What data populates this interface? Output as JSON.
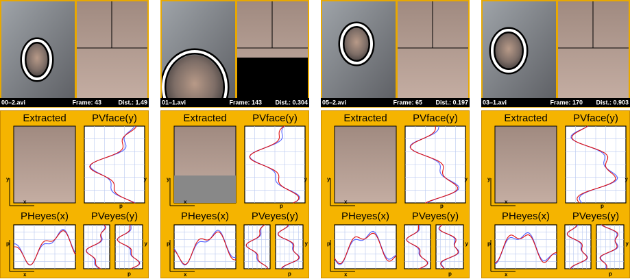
{
  "panels": [
    {
      "file": "00–2.avi",
      "frame": "Frame: 43",
      "dist": "Dist.: 1.49"
    },
    {
      "file": "01–1.avi",
      "frame": "Frame: 143",
      "dist": "Dist.: 0.304"
    },
    {
      "file": "05–2.avi",
      "frame": "Frame: 65",
      "dist": "Dist.: 0.197"
    },
    {
      "file": "03–1.avi",
      "frame": "Frame: 170",
      "dist": "Dist.: 0.903"
    }
  ],
  "labels": {
    "extracted": "Extracted",
    "pvface": "PVface(y)",
    "pheyes": "PHeyes(x)",
    "pveyes": "PVeyes(y)",
    "x": "x",
    "y": "y",
    "p": "p"
  }
}
